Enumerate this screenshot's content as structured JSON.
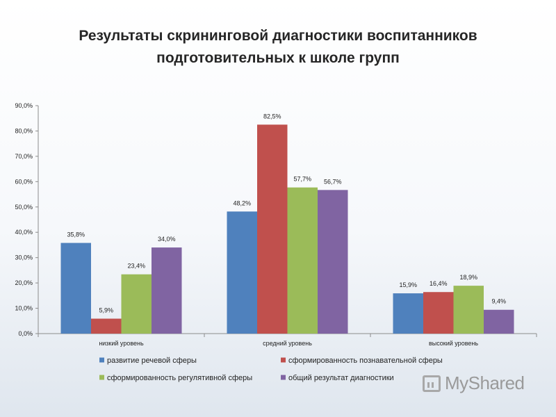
{
  "title": {
    "line1": "Результаты скрининговой диагностики воспитанников",
    "line2": "подготовительных к школе групп"
  },
  "watermark": {
    "text": "MyShared",
    "icon": "myshared-logo-icon"
  },
  "colors": {
    "series": [
      "#4F81BD",
      "#C0504D",
      "#9BBB59",
      "#8064A2"
    ],
    "grid": "#d9d9d9",
    "axis": "#8c8c8c"
  },
  "chart_data": {
    "type": "bar",
    "title": "",
    "xlabel": "",
    "ylabel": "",
    "ylim": [
      0,
      90
    ],
    "yticks": [
      "0,0%",
      "10,0%",
      "20,0%",
      "30,0%",
      "40,0%",
      "50,0%",
      "60,0%",
      "70,0%",
      "80,0%",
      "90,0%"
    ],
    "grid": false,
    "legend_position": "bottom",
    "categories": [
      "низкий уровень",
      "средний уровень",
      "высокий уровень"
    ],
    "series": [
      {
        "name": "развитие речевой сферы",
        "values": [
          35.8,
          48.2,
          15.9
        ],
        "labels": [
          "35,8%",
          "48,2%",
          "15,9%"
        ]
      },
      {
        "name": "сформированность познавательной сферы",
        "values": [
          5.9,
          82.5,
          16.4
        ],
        "labels": [
          "5,9%",
          "82,5%",
          "16,4%"
        ]
      },
      {
        "name": "сформированность регулятивной сферы",
        "values": [
          23.4,
          57.7,
          18.9
        ],
        "labels": [
          "23,4%",
          "57,7%",
          "18,9%"
        ]
      },
      {
        "name": "общий результат диагностики",
        "values": [
          34.0,
          56.7,
          9.4
        ],
        "labels": [
          "34,0%",
          "56,7%",
          "9,4%"
        ]
      }
    ]
  }
}
